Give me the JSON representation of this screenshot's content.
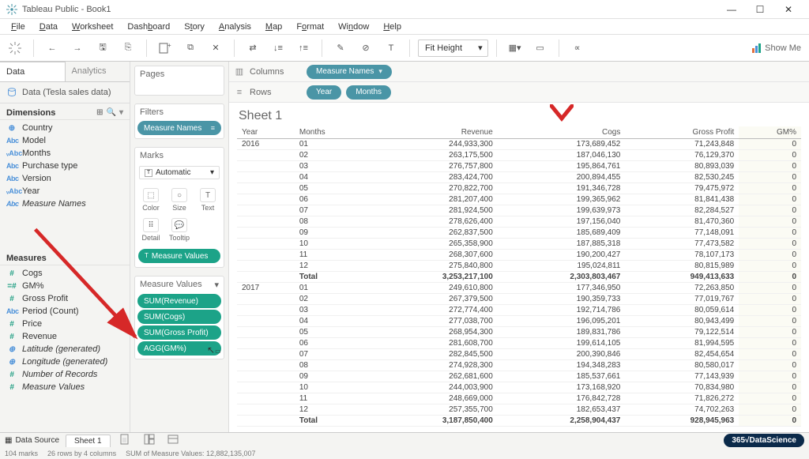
{
  "window": {
    "title": "Tableau Public - Book1"
  },
  "menu": [
    "File",
    "Data",
    "Worksheet",
    "Dashboard",
    "Story",
    "Analysis",
    "Map",
    "Format",
    "Window",
    "Help"
  ],
  "toolbar": {
    "fit": "Fit Height",
    "showme": "Show Me"
  },
  "sidetabs": {
    "data": "Data",
    "analytics": "Analytics"
  },
  "datasource": "Data (Tesla sales data)",
  "dimensions": {
    "label": "Dimensions",
    "items": [
      {
        "icon": "globe",
        "label": "Country"
      },
      {
        "icon": "abc",
        "label": "Model"
      },
      {
        "icon": "vabc",
        "label": "Months"
      },
      {
        "icon": "abc",
        "label": "Purchase type"
      },
      {
        "icon": "abc",
        "label": "Version"
      },
      {
        "icon": "vabc",
        "label": "Year"
      },
      {
        "icon": "abc",
        "label": "Measure Names",
        "italic": true
      }
    ]
  },
  "measures": {
    "label": "Measures",
    "items": [
      {
        "icon": "hash",
        "label": "Cogs"
      },
      {
        "icon": "equal",
        "label": "GM%"
      },
      {
        "icon": "hash",
        "label": "Gross Profit"
      },
      {
        "icon": "abc",
        "label": "Period (Count)"
      },
      {
        "icon": "hash",
        "label": "Price"
      },
      {
        "icon": "hash",
        "label": "Revenue"
      },
      {
        "icon": "globe",
        "label": "Latitude (generated)",
        "italic": true
      },
      {
        "icon": "globe",
        "label": "Longitude (generated)",
        "italic": true
      },
      {
        "icon": "hash",
        "label": "Number of Records",
        "italic": true
      },
      {
        "icon": "hash",
        "label": "Measure Values",
        "italic": true
      }
    ]
  },
  "shelves": {
    "pages": "Pages",
    "filters": "Filters",
    "filter_pill": "Measure Names",
    "marks": "Marks",
    "mark_type": "Automatic",
    "mark_cells": [
      "Color",
      "Size",
      "Text",
      "Detail",
      "Tooltip"
    ],
    "mv_pill": "Measure Values",
    "mv_title": "Measure Values",
    "mv_items": [
      "SUM(Revenue)",
      "SUM(Cogs)",
      "SUM(Gross Profit)",
      "AGG(GM%)"
    ]
  },
  "colrow": {
    "columns_label": "Columns",
    "columns": [
      "Measure Names"
    ],
    "rows_label": "Rows",
    "rows": [
      "Year",
      "Months"
    ]
  },
  "sheet_title": "Sheet 1",
  "table": {
    "cols": [
      "Year",
      "Months",
      "Revenue",
      "Cogs",
      "Gross Profit",
      "GM%"
    ],
    "groups": [
      {
        "year": "2016",
        "rows": [
          [
            "01",
            "244,933,300",
            "173,689,452",
            "71,243,848",
            "0"
          ],
          [
            "02",
            "263,175,500",
            "187,046,130",
            "76,129,370",
            "0"
          ],
          [
            "03",
            "276,757,800",
            "195,864,761",
            "80,893,039",
            "0"
          ],
          [
            "04",
            "283,424,700",
            "200,894,455",
            "82,530,245",
            "0"
          ],
          [
            "05",
            "270,822,700",
            "191,346,728",
            "79,475,972",
            "0"
          ],
          [
            "06",
            "281,207,400",
            "199,365,962",
            "81,841,438",
            "0"
          ],
          [
            "07",
            "281,924,500",
            "199,639,973",
            "82,284,527",
            "0"
          ],
          [
            "08",
            "278,626,400",
            "197,156,040",
            "81,470,360",
            "0"
          ],
          [
            "09",
            "262,837,500",
            "185,689,409",
            "77,148,091",
            "0"
          ],
          [
            "10",
            "265,358,900",
            "187,885,318",
            "77,473,582",
            "0"
          ],
          [
            "11",
            "268,307,600",
            "190,200,427",
            "78,107,173",
            "0"
          ],
          [
            "12",
            "275,840,800",
            "195,024,811",
            "80,815,989",
            "0"
          ]
        ],
        "total": [
          "Total",
          "3,253,217,100",
          "2,303,803,467",
          "949,413,633",
          "0"
        ]
      },
      {
        "year": "2017",
        "rows": [
          [
            "01",
            "249,610,800",
            "177,346,950",
            "72,263,850",
            "0"
          ],
          [
            "02",
            "267,379,500",
            "190,359,733",
            "77,019,767",
            "0"
          ],
          [
            "03",
            "272,774,400",
            "192,714,786",
            "80,059,614",
            "0"
          ],
          [
            "04",
            "277,038,700",
            "196,095,201",
            "80,943,499",
            "0"
          ],
          [
            "05",
            "268,954,300",
            "189,831,786",
            "79,122,514",
            "0"
          ],
          [
            "06",
            "281,608,700",
            "199,614,105",
            "81,994,595",
            "0"
          ],
          [
            "07",
            "282,845,500",
            "200,390,846",
            "82,454,654",
            "0"
          ],
          [
            "08",
            "274,928,300",
            "194,348,283",
            "80,580,017",
            "0"
          ],
          [
            "09",
            "262,681,600",
            "185,537,661",
            "77,143,939",
            "0"
          ],
          [
            "10",
            "244,003,900",
            "173,168,920",
            "70,834,980",
            "0"
          ],
          [
            "11",
            "248,669,000",
            "176,842,728",
            "71,826,272",
            "0"
          ],
          [
            "12",
            "257,355,700",
            "182,653,437",
            "74,702,263",
            "0"
          ]
        ],
        "total": [
          "Total",
          "3,187,850,400",
          "2,258,904,437",
          "928,945,963",
          "0"
        ]
      }
    ]
  },
  "bottom": {
    "datasource": "Data Source",
    "sheet": "Sheet 1"
  },
  "status": {
    "marks": "104 marks",
    "dims": "26 rows by 4 columns",
    "sum": "SUM of Measure Values: 12,882,135,007"
  },
  "logo": "365√DataScience"
}
